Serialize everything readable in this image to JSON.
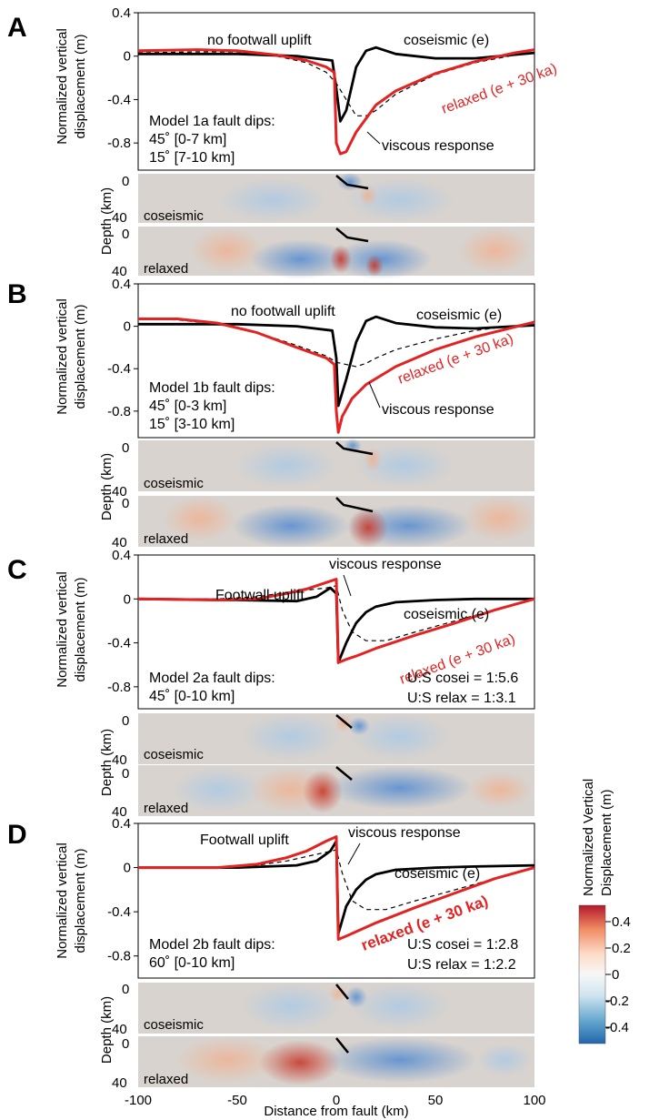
{
  "panels": [
    {
      "letter": "A",
      "annotations": {
        "no_footwall_uplift": "no footwall uplift",
        "coseismic": "coseismic (e)",
        "relaxed": "relaxed (e + 30 ka)",
        "viscous": "viscous response",
        "model_l1": "Model 1a fault dips:",
        "model_l2": "45˚ [0-7 km]",
        "model_l3": "15˚ [7-10 km]"
      },
      "map_labels": {
        "coseismic": "coseismic",
        "relaxed": "relaxed",
        "depth_top": "0",
        "depth_bot": "40"
      }
    },
    {
      "letter": "B",
      "annotations": {
        "no_footwall_uplift": "no footwall uplift",
        "coseismic": "coseismic (e)",
        "relaxed": "relaxed (e + 30 ka)",
        "viscous": "viscous response",
        "model_l1": "Model 1b fault dips:",
        "model_l2": "45˚ [0-3 km]",
        "model_l3": "15˚ [3-10 km]"
      },
      "map_labels": {
        "coseismic": "coseismic",
        "relaxed": "relaxed",
        "depth_top": "0",
        "depth_bot": "40"
      }
    },
    {
      "letter": "C",
      "annotations": {
        "footwall_uplift": "Footwall uplift",
        "viscous": "viscous response",
        "coseismic": "coseismic (e)",
        "relaxed": "relaxed (e + 30 ka)",
        "model_l1": "Model 2a fault dips:",
        "model_l2": "45˚ [0-10 km]",
        "us_cosei": "U:S cosei = 1:5.6",
        "us_relax": "U:S relax = 1:3.1"
      },
      "map_labels": {
        "coseismic": "coseismic",
        "relaxed": "relaxed",
        "depth_top": "0",
        "depth_bot": "40"
      }
    },
    {
      "letter": "D",
      "annotations": {
        "footwall_uplift": "Footwall uplift",
        "viscous": "viscous response",
        "coseismic": "coseismic (e)",
        "relaxed": "relaxed (e + 30 ka)",
        "model_l1": "Model 2b fault dips:",
        "model_l2": "60˚ [0-10 km]",
        "us_cosei": "U:S cosei = 1:2.8",
        "us_relax": "U:S relax = 1:2.2"
      },
      "map_labels": {
        "coseismic": "coseismic",
        "relaxed": "relaxed",
        "depth_top": "0",
        "depth_bot": "40"
      }
    }
  ],
  "axis_labels": {
    "ylabel_line1": "Normalized vertical",
    "ylabel_line2": "displacement (m)",
    "depth_label": "Depth (km)",
    "xlabel": "Distance from fault (km)"
  },
  "colorbar": {
    "title_line1": "Normalized Vertical",
    "title_line2": "Displacement (m)",
    "ticks": [
      "0.4",
      "0.2",
      "0",
      "-0.2",
      "-0.4"
    ],
    "colors": [
      "#b2182b",
      "#ef8a62",
      "#fddbc7",
      "#f7f7f7",
      "#d1e5f0",
      "#67a9cf",
      "#2166ac"
    ]
  },
  "colors": {
    "coseismic": "#000000",
    "relaxed": "#e32222",
    "viscous": "#000000",
    "map_bg": "#d8d3ce"
  },
  "chart_data": [
    {
      "type": "line",
      "panel": "A",
      "x_ticks": [
        "-100",
        "-50",
        "0",
        "50",
        "100"
      ],
      "y_ticks": [
        "0.4",
        "0",
        "-0.4",
        "-0.8"
      ],
      "xlim": [
        -100,
        100
      ],
      "ylim": [
        -1.05,
        0.4
      ],
      "series": [
        {
          "name": "coseismic (e)",
          "style": "solid-black",
          "x": [
            -100,
            -50,
            -20,
            -2,
            0,
            2,
            5,
            10,
            15,
            20,
            30,
            50,
            70,
            100
          ],
          "y": [
            0.02,
            0.02,
            0.0,
            -0.04,
            -0.3,
            -0.6,
            -0.5,
            -0.1,
            0.05,
            0.08,
            0.02,
            -0.02,
            -0.02,
            0.03
          ]
        },
        {
          "name": "relaxed (e + 30 ka)",
          "style": "solid-red",
          "x": [
            -100,
            -70,
            -50,
            -30,
            -15,
            -5,
            -1,
            0,
            2,
            5,
            10,
            20,
            30,
            50,
            70,
            90,
            100
          ],
          "y": [
            0.05,
            0.06,
            0.05,
            0.01,
            -0.04,
            -0.1,
            -0.15,
            -0.8,
            -0.9,
            -0.88,
            -0.7,
            -0.45,
            -0.32,
            -0.16,
            -0.05,
            0.03,
            0.06
          ]
        },
        {
          "name": "viscous response",
          "style": "dashed-black",
          "x": [
            -100,
            -70,
            -50,
            -30,
            -15,
            -5,
            0,
            5,
            10,
            15,
            20,
            30,
            50,
            70,
            90,
            100
          ],
          "y": [
            0.03,
            0.04,
            0.04,
            0.0,
            -0.06,
            -0.15,
            -0.25,
            -0.4,
            -0.55,
            -0.55,
            -0.5,
            -0.35,
            -0.17,
            -0.06,
            0.01,
            0.03
          ]
        }
      ]
    },
    {
      "type": "line",
      "panel": "B",
      "x_ticks": [
        "-100",
        "-50",
        "0",
        "50",
        "100"
      ],
      "y_ticks": [
        "0.4",
        "0",
        "-0.4",
        "-0.8"
      ],
      "xlim": [
        -100,
        100
      ],
      "ylim": [
        -1.05,
        0.4
      ],
      "series": [
        {
          "name": "coseismic (e)",
          "style": "solid-black",
          "x": [
            -100,
            -50,
            -20,
            -2,
            0,
            1,
            5,
            10,
            15,
            20,
            30,
            50,
            70,
            100
          ],
          "y": [
            0.02,
            0.02,
            0.0,
            -0.04,
            -0.3,
            -0.75,
            -0.5,
            -0.15,
            0.05,
            0.09,
            0.03,
            -0.01,
            -0.02,
            0.01
          ]
        },
        {
          "name": "relaxed (e + 30 ka)",
          "style": "solid-red",
          "x": [
            -100,
            -80,
            -60,
            -40,
            -20,
            -5,
            -1,
            0,
            1,
            3,
            8,
            15,
            30,
            50,
            70,
            100
          ],
          "y": [
            0.07,
            0.07,
            0.03,
            -0.06,
            -0.2,
            -0.3,
            -0.36,
            -0.8,
            -1.0,
            -0.85,
            -0.68,
            -0.55,
            -0.38,
            -0.22,
            -0.1,
            0.04
          ]
        },
        {
          "name": "viscous response",
          "style": "dashed-black",
          "x": [
            -100,
            -80,
            -60,
            -40,
            -20,
            -5,
            0,
            5,
            10,
            15,
            20,
            30,
            50,
            70,
            100
          ],
          "y": [
            0.07,
            0.06,
            0.02,
            -0.06,
            -0.18,
            -0.28,
            -0.34,
            -0.36,
            -0.38,
            -0.35,
            -0.3,
            -0.22,
            -0.12,
            -0.04,
            0.03
          ]
        }
      ]
    },
    {
      "type": "line",
      "panel": "C",
      "x_ticks": [
        "-100",
        "-50",
        "0",
        "50",
        "100"
      ],
      "y_ticks": [
        "0.4",
        "0",
        "-0.4",
        "-0.8"
      ],
      "xlim": [
        -100,
        100
      ],
      "ylim": [
        -1.0,
        0.4
      ],
      "series": [
        {
          "name": "coseismic (e)",
          "style": "solid-black",
          "x": [
            -100,
            -50,
            -20,
            -10,
            -3,
            0,
            1,
            5,
            10,
            15,
            20,
            30,
            50,
            70,
            100
          ],
          "y": [
            0.0,
            -0.01,
            -0.02,
            0.02,
            0.1,
            0.05,
            -0.58,
            -0.4,
            -0.22,
            -0.12,
            -0.07,
            -0.03,
            -0.01,
            0.0,
            0.0
          ]
        },
        {
          "name": "relaxed (e + 30 ka)",
          "style": "solid-red",
          "x": [
            -100,
            -60,
            -40,
            -25,
            -15,
            -5,
            0,
            1,
            5,
            10,
            20,
            40,
            60,
            80,
            100
          ],
          "y": [
            0.0,
            -0.01,
            0.0,
            0.05,
            0.09,
            0.15,
            0.18,
            -0.58,
            -0.55,
            -0.52,
            -0.45,
            -0.33,
            -0.22,
            -0.1,
            0.0
          ]
        },
        {
          "name": "viscous response",
          "style": "dashed-black",
          "x": [
            -100,
            -60,
            -40,
            -25,
            -15,
            -5,
            0,
            3,
            8,
            15,
            25,
            40,
            60,
            80,
            100
          ],
          "y": [
            0.0,
            0.0,
            0.02,
            0.06,
            0.08,
            0.1,
            0.12,
            -0.1,
            -0.3,
            -0.38,
            -0.38,
            -0.3,
            -0.2,
            -0.1,
            0.0
          ]
        }
      ]
    },
    {
      "type": "line",
      "panel": "D",
      "x_ticks": [
        "-100",
        "-50",
        "0",
        "50",
        "100"
      ],
      "y_ticks": [
        "0.4",
        "0",
        "-0.4",
        "-0.8"
      ],
      "xlim": [
        -100,
        100
      ],
      "ylim": [
        -1.0,
        0.4
      ],
      "series": [
        {
          "name": "coseismic (e)",
          "style": "solid-black",
          "x": [
            -100,
            -50,
            -20,
            -10,
            -3,
            0,
            1,
            5,
            10,
            15,
            20,
            30,
            50,
            70,
            100
          ],
          "y": [
            0.0,
            0.0,
            0.02,
            0.06,
            0.15,
            0.24,
            -0.6,
            -0.35,
            -0.2,
            -0.11,
            -0.06,
            -0.02,
            0.0,
            0.01,
            0.02
          ]
        },
        {
          "name": "relaxed (e + 30 ka)",
          "style": "solid-red",
          "x": [
            -100,
            -60,
            -40,
            -25,
            -15,
            -5,
            0,
            1,
            5,
            10,
            20,
            40,
            60,
            80,
            100
          ],
          "y": [
            0.0,
            0.0,
            0.03,
            0.09,
            0.15,
            0.24,
            0.28,
            -0.65,
            -0.62,
            -0.58,
            -0.5,
            -0.36,
            -0.23,
            -0.1,
            0.0
          ]
        },
        {
          "name": "viscous response",
          "style": "dashed-black",
          "x": [
            -100,
            -60,
            -40,
            -25,
            -15,
            -5,
            0,
            3,
            8,
            15,
            25,
            40,
            60,
            80,
            100
          ],
          "y": [
            0.0,
            0.0,
            0.02,
            0.06,
            0.1,
            0.14,
            0.16,
            -0.05,
            -0.3,
            -0.38,
            -0.38,
            -0.3,
            -0.2,
            -0.1,
            0.0
          ]
        }
      ]
    }
  ]
}
